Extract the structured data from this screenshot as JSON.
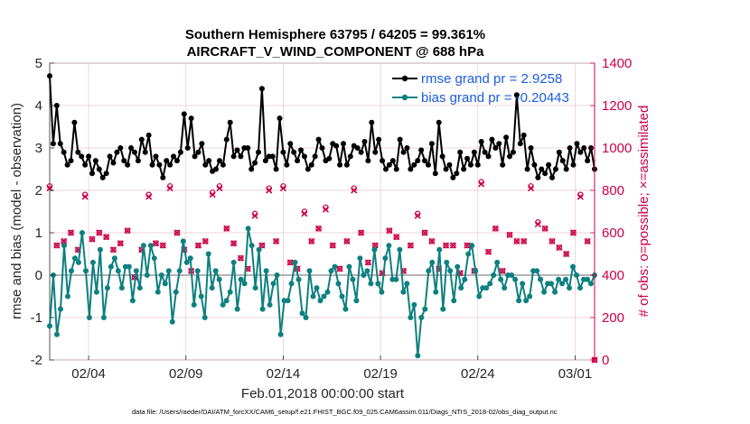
{
  "chart_data": {
    "type": "line",
    "title": "Southern Hemisphere 63795 / 64205 = 99.361%",
    "subtitle": "AIRCRAFT_V_WIND_COMPONENT @ 688 hPa",
    "xlabel": "Feb.01,2018 00:00:00 start",
    "ylabel": "rmse and bias (model - observation)",
    "y2label": "# of obs: o=possible; ×=assimilated",
    "xlim": [
      1,
      29
    ],
    "ylim": [
      -2,
      5
    ],
    "y2lim": [
      0,
      1400
    ],
    "xticks": [
      3,
      8,
      13,
      18,
      23,
      28
    ],
    "xtick_labels": [
      "02/04",
      "02/09",
      "02/14",
      "02/19",
      "02/24",
      "03/01"
    ],
    "yticks": [
      -2,
      -1,
      0,
      1,
      2,
      3,
      4,
      5
    ],
    "ytick_labels": [
      "-2",
      "-1",
      "0",
      "1",
      "2",
      "3",
      "4",
      "5"
    ],
    "y2ticks": [
      0,
      200,
      400,
      600,
      800,
      1000,
      1200,
      1400
    ],
    "y2tick_labels": [
      "0",
      "200",
      "400",
      "600",
      "800",
      "1000",
      "1200",
      "1400"
    ],
    "grid": true,
    "legend_position": "top-right",
    "series": [
      {
        "name": "rmse grand pr = 2.9258",
        "color": "#000000",
        "axis": "left",
        "values": [
          4.7,
          3.1,
          4.0,
          3.1,
          2.9,
          2.6,
          2.7,
          3.6,
          2.9,
          2.8,
          2.6,
          2.8,
          2.4,
          2.7,
          2.5,
          2.3,
          2.4,
          2.8,
          2.65,
          2.9,
          3.0,
          2.7,
          2.6,
          3.0,
          2.9,
          2.7,
          3.2,
          2.9,
          3.3,
          2.6,
          2.8,
          2.6,
          2.3,
          2.7,
          2.6,
          2.8,
          2.7,
          2.9,
          3.8,
          3.0,
          3.7,
          2.8,
          2.9,
          3.1,
          2.6,
          2.7,
          2.45,
          2.5,
          2.7,
          2.6,
          3.2,
          3.6,
          2.8,
          2.95,
          2.8,
          3.0,
          3.0,
          2.5,
          2.65,
          2.9,
          4.4,
          2.7,
          2.8,
          2.8,
          2.5,
          3.7,
          2.9,
          2.6,
          3.1,
          2.9,
          2.7,
          2.95,
          2.8,
          2.5,
          2.6,
          2.8,
          3.2,
          3.0,
          2.7,
          2.75,
          3.1,
          3.05,
          2.6,
          3.1,
          2.6,
          2.8,
          3.05,
          3.0,
          2.9,
          3.15,
          2.7,
          3.6,
          2.9,
          3.2,
          2.7,
          2.5,
          2.6,
          2.7,
          2.5,
          3.2,
          2.9,
          3.0,
          2.5,
          2.6,
          2.7,
          2.95,
          2.7,
          2.6,
          3.1,
          2.4,
          3.6,
          2.8,
          2.5,
          2.6,
          2.3,
          2.4,
          2.9,
          2.5,
          2.75,
          2.6,
          2.9,
          2.6,
          3.15,
          2.9,
          2.8,
          3.2,
          3.0,
          3.1,
          2.6,
          3.25,
          2.8,
          2.9,
          4.25,
          3.1,
          3.3,
          2.5,
          3.0,
          2.6,
          2.3,
          2.5,
          2.4,
          2.6,
          2.3,
          2.5,
          2.9,
          2.7,
          2.5,
          3.0,
          2.6,
          3.1,
          2.9,
          3.0,
          2.7,
          3.0,
          2.5
        ]
      },
      {
        "name": "bias grand pr = -0.20443",
        "color": "#0e8080",
        "axis": "left",
        "values": [
          -1.2,
          0.0,
          -1.4,
          -0.8,
          0.7,
          -0.5,
          0.1,
          0.4,
          0.3,
          1.0,
          0.1,
          -1.0,
          0.3,
          -0.4,
          0.6,
          -1.0,
          -0.3,
          0.2,
          0.4,
          0.1,
          -0.3,
          0.2,
          0.2,
          -0.6,
          0.1,
          -0.3,
          0.7,
          0.0,
          0.7,
          0.4,
          -0.4,
          0.0,
          -0.2,
          0.1,
          -1.1,
          -0.4,
          0.1,
          0.8,
          0.3,
          0.4,
          -0.7,
          0.1,
          -0.5,
          -1.0,
          0.5,
          -0.3,
          0.1,
          -0.1,
          -0.7,
          -0.6,
          -0.4,
          0.3,
          -0.8,
          -0.1,
          -0.2,
          1.1,
          0.7,
          -0.3,
          0.6,
          -0.8,
          0.1,
          -0.7,
          -0.2,
          0.0,
          -1.4,
          -0.6,
          -0.6,
          -0.2,
          0.3,
          -0.1,
          -0.9,
          -1.0,
          0.1,
          -0.5,
          -0.3,
          -0.6,
          -0.5,
          -0.4,
          0.1,
          0.2,
          -0.2,
          -0.5,
          -0.8,
          0.2,
          -0.1,
          -0.6,
          0.4,
          0.0,
          0.1,
          -0.2,
          0.6,
          -0.2,
          -0.4,
          0.4,
          0.7,
          -0.1,
          -0.1,
          0.6,
          -0.4,
          -0.2,
          -1.0,
          -0.7,
          -1.9,
          -1.0,
          -0.8,
          0.1,
          0.3,
          -0.4,
          0.6,
          -0.8,
          0.3,
          0.1,
          -0.6,
          0.2,
          -0.3,
          -0.1,
          0.5,
          0.7,
          0.1,
          -0.5,
          -0.3,
          -0.3,
          -0.2,
          0.0,
          0.3,
          -0.1,
          -0.3,
          0.0,
          0.0,
          -0.1,
          -0.6,
          -0.2,
          -0.6,
          -0.5,
          0.1,
          0.1,
          -0.1,
          -0.4,
          -0.2,
          -0.2,
          -0.4,
          -0.1,
          -0.2,
          -0.1,
          -0.3,
          0.2,
          0.0,
          -0.3,
          -0.1,
          -0.1,
          -0.2,
          0.0
        ]
      },
      {
        "name": "obs possible",
        "color": "#cc0044",
        "axis": "right",
        "marker": "o",
        "values": [
          820,
          540,
          560,
          600,
          520,
          780,
          570,
          600,
          580,
          520,
          550,
          610,
          390,
          520,
          780,
          550,
          540,
          820,
          600,
          520,
          420,
          540,
          560,
          790,
          820,
          620,
          550,
          480,
          430,
          690,
          540,
          810,
          560,
          820,
          460,
          430,
          700,
          560,
          620,
          720,
          540,
          430,
          560,
          810,
          600,
          460,
          540,
          410,
          610,
          580,
          420,
          540,
          690,
          600,
          560,
          430,
          540,
          540,
          410,
          540,
          420,
          840,
          510,
          620,
          420,
          590,
          560,
          560,
          820,
          650,
          620,
          560,
          530,
          500,
          600,
          780,
          560,
          0
        ]
      },
      {
        "name": "obs assimilated",
        "color": "#cc0044",
        "axis": "right",
        "marker": "x",
        "values": [
          810,
          540,
          560,
          600,
          520,
          770,
          570,
          600,
          580,
          520,
          550,
          610,
          390,
          520,
          770,
          550,
          540,
          810,
          600,
          520,
          420,
          540,
          560,
          780,
          810,
          620,
          550,
          480,
          430,
          680,
          540,
          800,
          560,
          810,
          460,
          430,
          690,
          560,
          620,
          710,
          540,
          430,
          560,
          800,
          600,
          460,
          540,
          410,
          610,
          580,
          420,
          540,
          680,
          600,
          560,
          430,
          540,
          540,
          410,
          540,
          420,
          830,
          510,
          620,
          420,
          590,
          560,
          560,
          810,
          640,
          620,
          560,
          530,
          500,
          600,
          770,
          560,
          0
        ]
      }
    ]
  },
  "footer": {
    "text": "data file: /Users/raeder/DAI/ATM_forcXX/CAM6_setup/f.e21.FHIST_BGC.f09_025.CAM6assim.011/Diags_NTrS_2018-02/obs_diag_output.nc"
  },
  "colors": {
    "rmse": "#000000",
    "bias": "#0e8080",
    "obs": "#cc0044",
    "legend_text": "#1a5ce0",
    "grid": "#e6c8cc"
  }
}
